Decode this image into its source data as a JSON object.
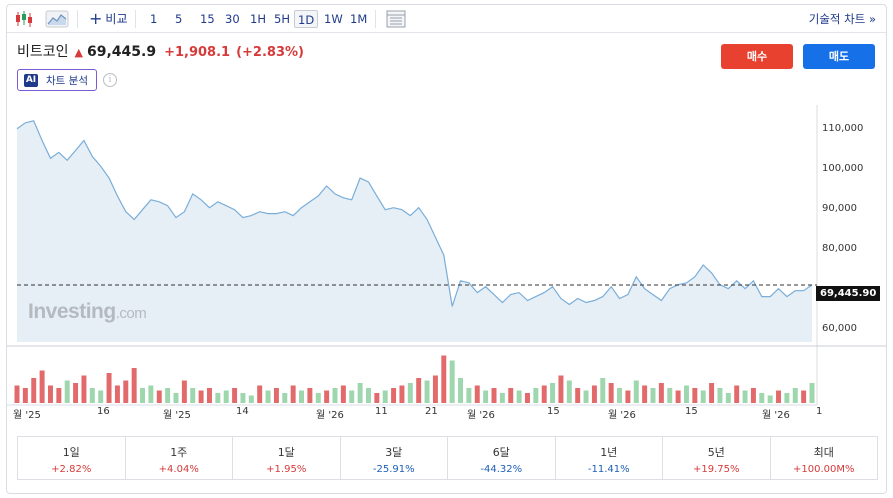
{
  "toolbar": {
    "compare_label": "비교",
    "intervals": [
      "1",
      "5",
      "15",
      "30",
      "1H",
      "5H",
      "1D",
      "1W",
      "1M"
    ],
    "active_interval": "1D",
    "technical_label": "기술적 차트 »"
  },
  "header": {
    "name": "비트코인",
    "price": "69,445.9",
    "change": "+1,908.1",
    "change_pct": "(+2.83%)",
    "ai_badge": "AI",
    "ai_label": "차트 분석",
    "info_icon": "i",
    "buy_label": "매수",
    "sell_label": "매도"
  },
  "colors": {
    "up": "#d63b3b",
    "down": "#1e5fb8",
    "line": "#7aaed8",
    "area": "#e6eef6",
    "vol_up": "#9ed6ae",
    "vol_down": "#e26a6a",
    "buy": "#e8412f",
    "sell": "#1670e8"
  },
  "chart": {
    "watermark": "Investing",
    "watermark_domain": ".com",
    "last_price_label": "69,445.90",
    "y_ticks": [
      "110,000",
      "100,000",
      "90,000",
      "80,000",
      "60,000"
    ],
    "x_ticks": [
      "월 '25",
      "16",
      "월 '25",
      "14",
      "월 '26",
      "11",
      "21",
      "월 '26",
      "15",
      "월 '26",
      "15",
      "월 '26",
      "1"
    ]
  },
  "chart_data": {
    "type": "area",
    "ylim": [
      55000,
      115000
    ],
    "last_price": 69445.9,
    "values": [
      109000,
      110500,
      111000,
      106000,
      101500,
      103000,
      101000,
      103500,
      106000,
      102000,
      99500,
      96500,
      92000,
      88000,
      86000,
      88500,
      91000,
      90500,
      89500,
      86500,
      88000,
      92500,
      91000,
      89000,
      90500,
      89500,
      88500,
      86500,
      87000,
      88000,
      87500,
      87500,
      88000,
      87000,
      89000,
      90500,
      92000,
      94500,
      92500,
      91500,
      91000,
      96500,
      95500,
      92000,
      88500,
      89000,
      88500,
      87000,
      89000,
      86000,
      81500,
      77000,
      64000,
      70500,
      70000,
      67500,
      69000,
      67000,
      65000,
      67000,
      67500,
      65500,
      66500,
      67500,
      69000,
      66000,
      64500,
      66000,
      65000,
      65500,
      66500,
      69000,
      66000,
      67000,
      71500,
      68500,
      67000,
      65500,
      68500,
      69500,
      70000,
      71500,
      74500,
      72500,
      69500,
      68500,
      70500,
      68500,
      70500,
      66500,
      66500,
      68500,
      66500,
      68000,
      68000,
      69445.9
    ],
    "volumes": [
      [
        0.35,
        0
      ],
      [
        0.3,
        0
      ],
      [
        0.5,
        0
      ],
      [
        0.65,
        0
      ],
      [
        0.35,
        0
      ],
      [
        0.3,
        0
      ],
      [
        0.45,
        1
      ],
      [
        0.4,
        0
      ],
      [
        0.55,
        0
      ],
      [
        0.3,
        1
      ],
      [
        0.25,
        1
      ],
      [
        0.6,
        0
      ],
      [
        0.35,
        0
      ],
      [
        0.45,
        0
      ],
      [
        0.7,
        0
      ],
      [
        0.3,
        1
      ],
      [
        0.35,
        1
      ],
      [
        0.25,
        0
      ],
      [
        0.3,
        1
      ],
      [
        0.2,
        1
      ],
      [
        0.45,
        0
      ],
      [
        0.3,
        1
      ],
      [
        0.25,
        0
      ],
      [
        0.3,
        0
      ],
      [
        0.2,
        1
      ],
      [
        0.25,
        1
      ],
      [
        0.3,
        0
      ],
      [
        0.2,
        1
      ],
      [
        0.15,
        1
      ],
      [
        0.35,
        0
      ],
      [
        0.25,
        1
      ],
      [
        0.3,
        0
      ],
      [
        0.2,
        1
      ],
      [
        0.35,
        0
      ],
      [
        0.25,
        1
      ],
      [
        0.3,
        0
      ],
      [
        0.2,
        1
      ],
      [
        0.25,
        0
      ],
      [
        0.3,
        1
      ],
      [
        0.35,
        0
      ],
      [
        0.25,
        1
      ],
      [
        0.4,
        1
      ],
      [
        0.3,
        1
      ],
      [
        0.2,
        0
      ],
      [
        0.25,
        1
      ],
      [
        0.3,
        0
      ],
      [
        0.35,
        0
      ],
      [
        0.4,
        1
      ],
      [
        0.5,
        0
      ],
      [
        0.45,
        1
      ],
      [
        0.55,
        0
      ],
      [
        0.95,
        0
      ],
      [
        0.85,
        1
      ],
      [
        0.5,
        1
      ],
      [
        0.3,
        1
      ],
      [
        0.35,
        0
      ],
      [
        0.25,
        1
      ],
      [
        0.3,
        0
      ],
      [
        0.2,
        1
      ],
      [
        0.3,
        0
      ],
      [
        0.25,
        1
      ],
      [
        0.2,
        0
      ],
      [
        0.3,
        1
      ],
      [
        0.35,
        0
      ],
      [
        0.4,
        1
      ],
      [
        0.55,
        0
      ],
      [
        0.45,
        1
      ],
      [
        0.3,
        0
      ],
      [
        0.25,
        1
      ],
      [
        0.35,
        0
      ],
      [
        0.5,
        1
      ],
      [
        0.4,
        0
      ],
      [
        0.3,
        1
      ],
      [
        0.25,
        0
      ],
      [
        0.45,
        1
      ],
      [
        0.35,
        0
      ],
      [
        0.3,
        1
      ],
      [
        0.4,
        0
      ],
      [
        0.3,
        1
      ],
      [
        0.25,
        0
      ],
      [
        0.35,
        1
      ],
      [
        0.3,
        0
      ],
      [
        0.25,
        1
      ],
      [
        0.4,
        0
      ],
      [
        0.3,
        1
      ],
      [
        0.2,
        1
      ],
      [
        0.35,
        0
      ],
      [
        0.25,
        1
      ],
      [
        0.3,
        0
      ],
      [
        0.2,
        1
      ],
      [
        0.15,
        1
      ],
      [
        0.25,
        0
      ],
      [
        0.2,
        1
      ],
      [
        0.3,
        1
      ],
      [
        0.25,
        0
      ],
      [
        0.4,
        1
      ]
    ]
  },
  "performance": [
    {
      "label": "1일",
      "value": "+2.82%",
      "dir": "pos"
    },
    {
      "label": "1주",
      "value": "+4.04%",
      "dir": "pos"
    },
    {
      "label": "1달",
      "value": "+1.95%",
      "dir": "pos"
    },
    {
      "label": "3달",
      "value": "-25.91%",
      "dir": "neg"
    },
    {
      "label": "6달",
      "value": "-44.32%",
      "dir": "neg"
    },
    {
      "label": "1년",
      "value": "-11.41%",
      "dir": "neg"
    },
    {
      "label": "5년",
      "value": "+19.75%",
      "dir": "pos"
    },
    {
      "label": "최대",
      "value": "+100.00M%",
      "dir": "pos"
    }
  ]
}
